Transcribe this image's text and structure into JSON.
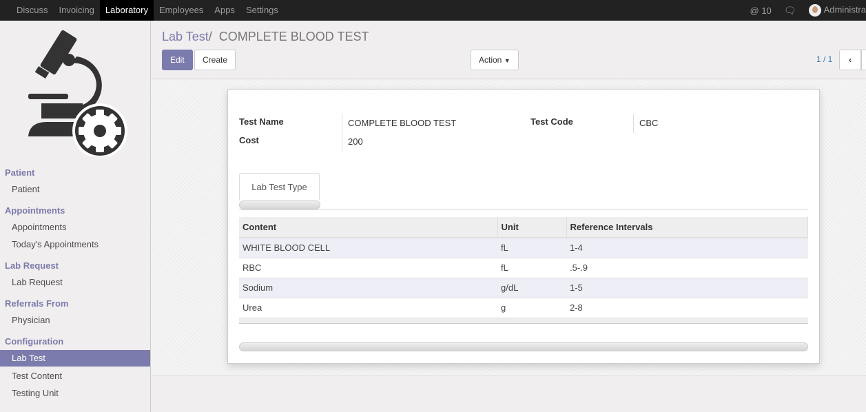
{
  "topbar": {
    "menu": [
      "Discuss",
      "Invoicing",
      "Laboratory",
      "Employees",
      "Apps",
      "Settings"
    ],
    "active": "Laboratory",
    "mentions": "@ 10",
    "user": "Administra"
  },
  "sidebar": {
    "sections": [
      {
        "title": "Patient",
        "items": [
          "Patient"
        ]
      },
      {
        "title": "Appointments",
        "items": [
          "Appointments",
          "Today's Appointments"
        ]
      },
      {
        "title": "Lab Request",
        "items": [
          "Lab Request"
        ]
      },
      {
        "title": "Referrals From",
        "items": [
          "Physician"
        ]
      },
      {
        "title": "Configuration",
        "items": [
          "Lab Test",
          "Test Content",
          "Testing Unit"
        ]
      }
    ],
    "active_item": "Lab Test"
  },
  "breadcrumb": {
    "parent": "Lab Test",
    "sep": "/",
    "current": "COMPLETE BLOOD TEST"
  },
  "buttons": {
    "edit": "Edit",
    "create": "Create",
    "action": "Action"
  },
  "pager": "1 / 1",
  "form": {
    "test_name_label": "Test Name",
    "test_name": "COMPLETE BLOOD TEST",
    "cost_label": "Cost",
    "cost": "200",
    "test_code_label": "Test Code",
    "test_code": "CBC"
  },
  "tab": "Lab Test Type",
  "table": {
    "headers": [
      "Content",
      "Unit",
      "Reference Intervals"
    ],
    "rows": [
      [
        "WHITE BLOOD CELL",
        "fL",
        "1-4"
      ],
      [
        "RBC",
        "fL",
        ".5-.9"
      ],
      [
        "Sodium",
        "g/dL",
        "1-5"
      ],
      [
        "Urea",
        "g",
        "2-8"
      ]
    ]
  },
  "colors": {
    "accent": "#7c7bad",
    "topbar": "#222222"
  }
}
